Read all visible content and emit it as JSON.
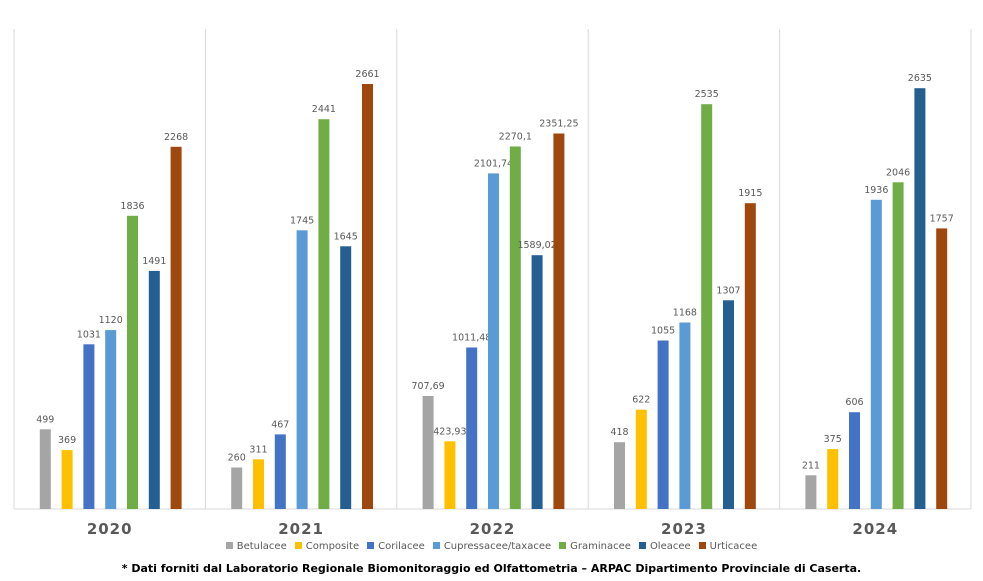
{
  "chart_data": {
    "type": "bar",
    "categories": [
      "2020",
      "2021",
      "2022",
      "2023",
      "2024"
    ],
    "series": [
      {
        "name": "Betulacee",
        "color": "#a5a5a5",
        "values": [
          499,
          260,
          707.69,
          418,
          211
        ],
        "labels": [
          "499",
          "260",
          "707,69",
          "418",
          "211"
        ]
      },
      {
        "name": "Composite",
        "color": "#ffc000",
        "values": [
          369,
          311,
          423.93,
          622,
          375
        ],
        "labels": [
          "369",
          "311",
          "423,93",
          "622",
          "375"
        ]
      },
      {
        "name": "Corilacee",
        "color": "#4472c4",
        "values": [
          1031,
          467,
          1011.48,
          1055,
          606
        ],
        "labels": [
          "1031",
          "467",
          "1011,48",
          "1055",
          "606"
        ]
      },
      {
        "name": "Cupressacee/taxacee",
        "color": "#5b9bd5",
        "values": [
          1120,
          1745,
          2101.74,
          1168,
          1936
        ],
        "labels": [
          "1120",
          "1745",
          "2101,74",
          "1168",
          "1936"
        ]
      },
      {
        "name": "Graminacee",
        "color": "#70ad47",
        "values": [
          1836,
          2441,
          2270.1,
          2535,
          2046
        ],
        "labels": [
          "1836",
          "2441",
          "2270,1",
          "2535",
          "2046"
        ]
      },
      {
        "name": "Oleacee",
        "color": "#255e91",
        "values": [
          1491,
          1645,
          1589.02,
          1307,
          2635
        ],
        "labels": [
          "1491",
          "1645",
          "1589,02",
          "1307",
          "2635"
        ]
      },
      {
        "name": "Urticacee",
        "color": "#9e480e",
        "values": [
          2268,
          2661,
          2351.25,
          1915,
          1757
        ],
        "labels": [
          "2268",
          "2661",
          "2351,25",
          "1915",
          "1757"
        ]
      }
    ],
    "ylim": [
      0,
      3000
    ],
    "grid": false,
    "legend": "bottom"
  },
  "footnote": "* Dati forniti dal Laboratorio Regionale Biomonitoraggio ed Olfattometria – ARPAC Dipartimento Provinciale di Caserta."
}
